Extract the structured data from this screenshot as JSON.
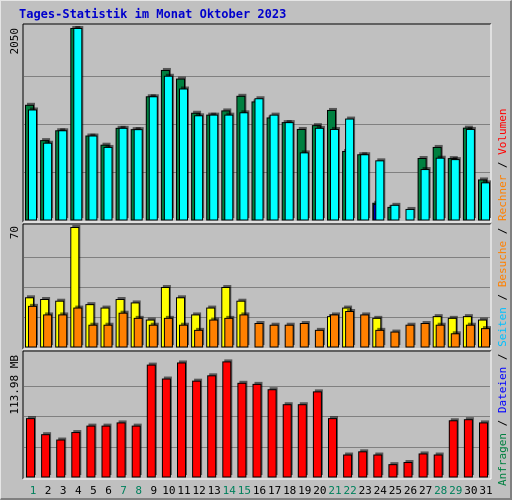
{
  "title": "Tages-Statistik im Monat Oktober 2023",
  "colors": {
    "title": "#0000cc",
    "hits": "#008040",
    "files": "#00c0ff",
    "pages": "#00ffff",
    "visits": "#ffff00",
    "sites": "#ff8000",
    "kbytes": "#ff0000",
    "weekday_label": "#000000",
    "weekend_label": "#00805c",
    "background": "#c0c0c0"
  },
  "side_labels": {
    "top": [
      {
        "text": "Anfragen",
        "color": "#008040"
      },
      {
        "text": "Dateien",
        "color": "#0000ff"
      },
      {
        "text": "Seiten",
        "color": "#00c0ff"
      },
      {
        "text": "Besuche",
        "color": "#ff8000"
      },
      {
        "text": "Rechner",
        "color": "#ff8000"
      },
      {
        "text": "Volumen",
        "color": "#ff0000"
      }
    ],
    "separator": " / "
  },
  "chart_data": [
    {
      "type": "bar",
      "panel": "top",
      "scale_label": "2050",
      "ylim": [
        0,
        2050
      ],
      "categories": [
        "1",
        "2",
        "3",
        "4",
        "5",
        "6",
        "7",
        "8",
        "9",
        "10",
        "11",
        "12",
        "13",
        "14",
        "15",
        "16",
        "17",
        "18",
        "19",
        "20",
        "21",
        "22",
        "23",
        "24",
        "25",
        "26",
        "27",
        "28",
        "29",
        "30",
        "31"
      ],
      "weekend_days": [
        "1",
        "7",
        "8",
        "14",
        "15",
        "21",
        "22",
        "28",
        "29"
      ],
      "series": [
        {
          "name": "Anfragen",
          "color": "#008040",
          "values": [
            1230,
            853,
            958,
            2050,
            902,
            804,
            984,
            970,
            1321,
            1602,
            1510,
            1145,
            1125,
            1170,
            1326,
            1266,
            1095,
            1045,
            972,
            1013,
            1175,
            737,
            702,
            184,
            140,
            0,
            662,
            780,
            661,
            986,
            433
          ]
        },
        {
          "name": "Dateien",
          "color": "#0000ff",
          "values": [
            0,
            0,
            0,
            0,
            0,
            0,
            0,
            0,
            0,
            0,
            0,
            0,
            0,
            0,
            0,
            0,
            0,
            0,
            0,
            0,
            0,
            0,
            0,
            170,
            0,
            0,
            0,
            0,
            0,
            0,
            0
          ]
        },
        {
          "name": "Seiten",
          "color": "#00ffff",
          "values": [
            1180,
            825,
            958,
            2050,
            902,
            780,
            984,
            970,
            1321,
            1540,
            1404,
            1118,
            1125,
            1125,
            1150,
            1300,
            1125,
            1045,
            722,
            984,
            972,
            1083,
            702,
            637,
            162,
            118,
            544,
            665,
            650,
            972,
            402
          ]
        }
      ]
    },
    {
      "type": "bar",
      "panel": "middle",
      "scale_label": "70",
      "ylim": [
        0,
        70
      ],
      "categories": [
        "1",
        "2",
        "3",
        "4",
        "5",
        "6",
        "7",
        "8",
        "9",
        "10",
        "11",
        "12",
        "13",
        "14",
        "15",
        "16",
        "17",
        "18",
        "19",
        "20",
        "21",
        "22",
        "23",
        "24",
        "25",
        "26",
        "27",
        "28",
        "29",
        "30",
        "31"
      ],
      "series": [
        {
          "name": "Besuche",
          "color": "#ffff00",
          "values": [
            29,
            28,
            27,
            70,
            25,
            23,
            28,
            26,
            16,
            35,
            29,
            19,
            23,
            35,
            27,
            0,
            0,
            0,
            0,
            0,
            18,
            23,
            0,
            17,
            0,
            0,
            0,
            18,
            17,
            18,
            16
          ]
        },
        {
          "name": "Rechner",
          "color": "#ff8000",
          "values": [
            24,
            19,
            19,
            23,
            13,
            13,
            20,
            17,
            13,
            17,
            13,
            10,
            16,
            17,
            19,
            14,
            13,
            13,
            14,
            10,
            19,
            21,
            19,
            10,
            9,
            13,
            14,
            13,
            8,
            13,
            11
          ]
        }
      ]
    },
    {
      "type": "bar",
      "panel": "bottom",
      "scale_label": "113.98 MB",
      "ylim": [
        0,
        113.98
      ],
      "categories": [
        "1",
        "2",
        "3",
        "4",
        "5",
        "6",
        "7",
        "8",
        "9",
        "10",
        "11",
        "12",
        "13",
        "14",
        "15",
        "16",
        "17",
        "18",
        "19",
        "20",
        "21",
        "22",
        "23",
        "24",
        "25",
        "26",
        "27",
        "28",
        "29",
        "30",
        "31"
      ],
      "series": [
        {
          "name": "Volumen",
          "color": "#ff0000",
          "values": [
            55,
            40,
            35,
            42,
            48,
            48,
            51,
            48,
            105,
            92,
            107,
            90,
            95,
            108,
            88,
            87,
            82,
            68,
            68,
            80,
            55,
            21,
            24,
            21,
            12,
            14,
            22,
            21,
            53,
            54,
            51
          ]
        }
      ]
    }
  ]
}
